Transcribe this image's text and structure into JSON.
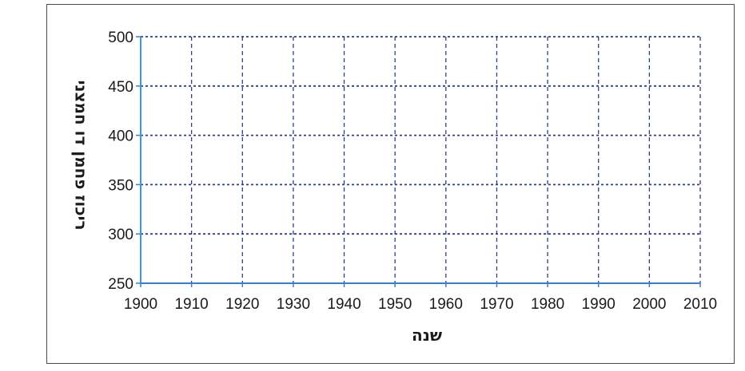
{
  "chart_data": {
    "type": "line",
    "title": "",
    "xlabel": "שנה",
    "ylabel": "ריכוז פחמן דו חמצני",
    "x_ticks": [
      "1900",
      "1910",
      "1920",
      "1930",
      "1940",
      "1950",
      "1960",
      "1970",
      "1980",
      "1990",
      "2000",
      "2010"
    ],
    "y_ticks": [
      "250",
      "300",
      "350",
      "400",
      "450",
      "500"
    ],
    "xlim": [
      1900,
      2010
    ],
    "ylim": [
      250,
      500
    ],
    "grid": true,
    "grid_style": "dashed",
    "series": []
  },
  "colors": {
    "grid": "#2d3e8c",
    "axis": "#3a7fc9",
    "frame": "#4a4a4a"
  }
}
